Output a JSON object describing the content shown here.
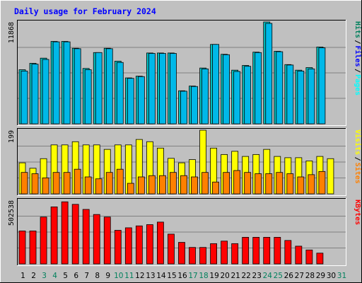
{
  "title": "Daily usage for February 2024",
  "colors": {
    "background": "#c0c0c0",
    "plot_background": "#c0c0c0",
    "title_text": "#0000ff",
    "grid": "#808080",
    "hits": "#00c0c0",
    "files": "#00b8e8",
    "pages": "#00ffff",
    "visits": "#ffff00",
    "sites": "#ff8000",
    "kbytes": "#ff0000",
    "weekend_label": "#00805c",
    "weekday_label": "#000000"
  },
  "chart_data": [
    {
      "type": "bar",
      "panel": "top",
      "ylabel_max": "11868",
      "ylim": [
        0,
        11868
      ],
      "legend": [
        "Pages",
        "Files",
        "Hits"
      ],
      "legend_colors": [
        "#00ffff",
        "#0000ff",
        "#00805c"
      ],
      "categories": [
        "1",
        "2",
        "3",
        "4",
        "5",
        "6",
        "7",
        "8",
        "9",
        "10",
        "11",
        "12",
        "13",
        "14",
        "15",
        "16",
        "17",
        "18",
        "19",
        "20",
        "21",
        "22",
        "23",
        "24",
        "25",
        "26",
        "27",
        "28",
        "29",
        "30",
        "31"
      ],
      "series": [
        {
          "name": "Hits",
          "color": "#00c0c0",
          "values": [
            6300,
            7050,
            7650,
            9600,
            9600,
            8800,
            6450,
            8300,
            8800,
            7300,
            5350,
            5550,
            8250,
            8250,
            8250,
            3850,
            4400,
            6500,
            9250,
            8100,
            6250,
            6800,
            8350,
            11868,
            8450,
            6900,
            6250,
            6550,
            8950,
            null,
            null
          ]
        },
        {
          "name": "Files",
          "color": "#00b8e8",
          "values": [
            6150,
            6950,
            7500,
            9550,
            9550,
            8750,
            6300,
            8300,
            8750,
            7150,
            5300,
            5500,
            8200,
            8200,
            8200,
            3800,
            4350,
            6400,
            9250,
            8050,
            6100,
            6700,
            8300,
            11700,
            8400,
            6850,
            6150,
            6400,
            8850,
            null,
            null
          ]
        }
      ]
    },
    {
      "type": "bar",
      "panel": "middle",
      "ylabel_max": "199",
      "ylim": [
        0,
        199
      ],
      "legend": [
        "Sites",
        "Visits"
      ],
      "legend_colors": [
        "#ff8000",
        "#ffff00"
      ],
      "categories": [
        "1",
        "2",
        "3",
        "4",
        "5",
        "6",
        "7",
        "8",
        "9",
        "10",
        "11",
        "12",
        "13",
        "14",
        "15",
        "16",
        "17",
        "18",
        "19",
        "20",
        "21",
        "22",
        "23",
        "24",
        "25",
        "26",
        "27",
        "28",
        "29",
        "30",
        "31"
      ],
      "series": [
        {
          "name": "Visits",
          "color": "#ffff00",
          "values": [
            97,
            80,
            110,
            153,
            153,
            163,
            153,
            153,
            139,
            153,
            153,
            170,
            163,
            143,
            111,
            97,
            107,
            199,
            143,
            123,
            133,
            117,
            123,
            139,
            117,
            113,
            113,
            103,
            117,
            110,
            null
          ]
        },
        {
          "name": "Sites",
          "color": "#ff8000",
          "values": [
            67,
            63,
            50,
            67,
            67,
            77,
            53,
            47,
            67,
            77,
            33,
            53,
            57,
            57,
            67,
            57,
            53,
            67,
            37,
            67,
            73,
            67,
            63,
            63,
            67,
            63,
            53,
            60,
            70,
            null,
            null
          ]
        }
      ]
    },
    {
      "type": "bar",
      "panel": "bottom",
      "ylabel_max": "502538",
      "ylim": [
        0,
        502538
      ],
      "legend": [
        "KBytes"
      ],
      "legend_colors": [
        "#ff0000"
      ],
      "categories": [
        "1",
        "2",
        "3",
        "4",
        "5",
        "6",
        "7",
        "8",
        "9",
        "10",
        "11",
        "12",
        "13",
        "14",
        "15",
        "16",
        "17",
        "18",
        "19",
        "20",
        "21",
        "22",
        "23",
        "24",
        "25",
        "26",
        "27",
        "28",
        "29",
        "30",
        "31"
      ],
      "series": [
        {
          "name": "KBytes",
          "color": "#ff0000",
          "values": [
            260000,
            260000,
            370000,
            450000,
            490000,
            470000,
            430000,
            390000,
            370000,
            265000,
            285000,
            300000,
            310000,
            330000,
            235000,
            170000,
            130000,
            130000,
            160000,
            180000,
            160000,
            210000,
            210000,
            210000,
            210000,
            185000,
            140000,
            110000,
            85000,
            null,
            null
          ]
        }
      ]
    }
  ],
  "weekend_days": [
    "3",
    "4",
    "10",
    "11",
    "17",
    "18",
    "24",
    "25",
    "31"
  ]
}
